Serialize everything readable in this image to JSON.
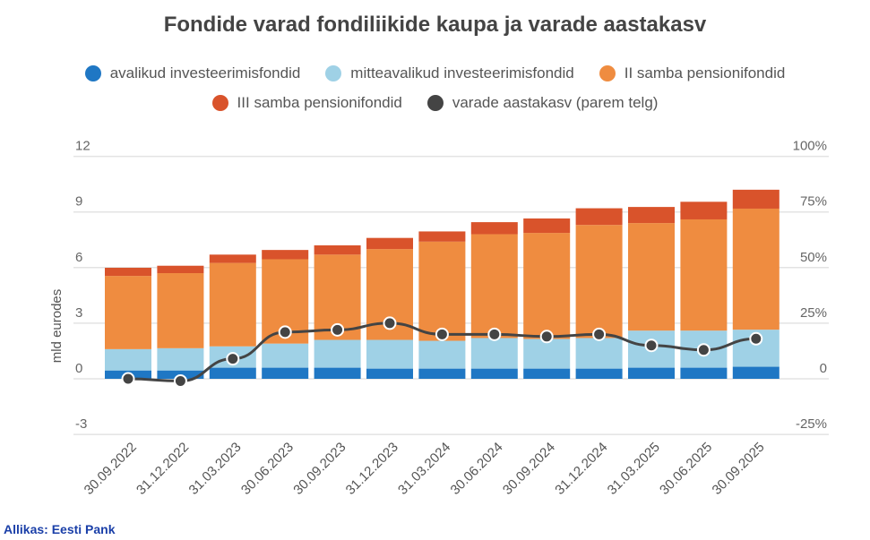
{
  "chart_data": {
    "type": "bar",
    "stacked": true,
    "title": "Fondide varad fondiliikide kaupa ja varade aastakasv",
    "ylabel": "mld eurodes",
    "ylim": [
      -3,
      12
    ],
    "yticks": [
      "-3",
      "0",
      "3",
      "6",
      "9",
      "12"
    ],
    "y2lim": [
      -25,
      100
    ],
    "y2ticks": [
      "-25%",
      "0",
      "25%",
      "50%",
      "75%",
      "100%"
    ],
    "grid": true,
    "legend_position": "top",
    "categories": [
      "30.09.2022",
      "31.12.2022",
      "31.03.2023",
      "30.06.2023",
      "30.09.2023",
      "31.12.2023",
      "31.03.2024",
      "30.06.2024",
      "30.09.2024",
      "31.12.2024",
      "31.03.2025",
      "30.06.2025",
      "30.09.2025"
    ],
    "series": [
      {
        "name": "avalikud investeerimisfondid",
        "color": "#1f77c4",
        "values": [
          0.45,
          0.45,
          0.6,
          0.6,
          0.6,
          0.55,
          0.55,
          0.55,
          0.55,
          0.55,
          0.6,
          0.6,
          0.65
        ]
      },
      {
        "name": "mitteavalikud investeerimisfondid",
        "color": "#9fd1e6",
        "values": [
          1.15,
          1.2,
          1.15,
          1.3,
          1.5,
          1.55,
          1.5,
          1.65,
          1.6,
          1.65,
          2.0,
          2.0,
          2.0
        ]
      },
      {
        "name": "II samba pensionifondid",
        "color": "#ef8c40",
        "values": [
          3.95,
          4.05,
          4.5,
          4.55,
          4.6,
          4.9,
          5.35,
          5.6,
          5.72,
          6.1,
          5.8,
          6.0,
          6.53
        ]
      },
      {
        "name": "III samba pensionifondid",
        "color": "#d9532b",
        "values": [
          0.44,
          0.4,
          0.45,
          0.5,
          0.5,
          0.6,
          0.55,
          0.65,
          0.78,
          0.9,
          0.87,
          0.95,
          1.02
        ]
      }
    ],
    "line_series": {
      "name": "varade aastakasv (parem telg)",
      "color": "#444444",
      "axis": "right",
      "unit": "%",
      "values": [
        0,
        -1,
        9,
        21,
        22,
        25,
        20,
        20,
        19,
        20,
        15,
        13,
        18
      ]
    }
  },
  "source": "Allikas: Eesti Pank"
}
